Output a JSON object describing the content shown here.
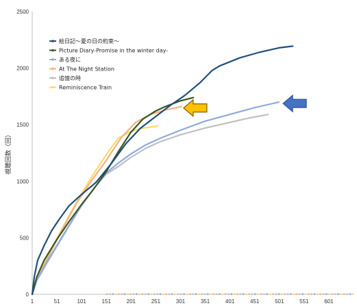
{
  "chart_data": {
    "type": "line",
    "title": "",
    "xlabel": "",
    "ylabel": "視聴回数（回）",
    "ylim": [
      0,
      2500
    ],
    "xlim": [
      1,
      651
    ],
    "x_ticks": [
      "1",
      "51",
      "101",
      "151",
      "201",
      "251",
      "301",
      "351",
      "401",
      "451",
      "501",
      "551",
      "601"
    ],
    "y_ticks": [
      "0",
      "500",
      "1000",
      "1500",
      "2000",
      "2500"
    ],
    "grid": false,
    "legend_position": "top-left",
    "series": [
      {
        "name": "絵日記～夏の日の約束～",
        "color": "#1F4E79",
        "points": [
          [
            1,
            0
          ],
          [
            5,
            150
          ],
          [
            12,
            300
          ],
          [
            25,
            430
          ],
          [
            40,
            560
          ],
          [
            55,
            660
          ],
          [
            75,
            780
          ],
          [
            100,
            880
          ],
          [
            130,
            990
          ],
          [
            160,
            1150
          ],
          [
            190,
            1330
          ],
          [
            220,
            1470
          ],
          [
            250,
            1570
          ],
          [
            280,
            1670
          ],
          [
            310,
            1760
          ],
          [
            340,
            1870
          ],
          [
            365,
            1980
          ],
          [
            380,
            2020
          ],
          [
            420,
            2090
          ],
          [
            460,
            2140
          ],
          [
            500,
            2180
          ],
          [
            528,
            2195
          ]
        ]
      },
      {
        "name": "Picture Diary-Promise in the winter day-",
        "color": "#375623",
        "points": [
          [
            1,
            0
          ],
          [
            10,
            150
          ],
          [
            25,
            300
          ],
          [
            50,
            480
          ],
          [
            75,
            640
          ],
          [
            100,
            790
          ],
          [
            125,
            930
          ],
          [
            150,
            1080
          ],
          [
            175,
            1260
          ],
          [
            200,
            1430
          ],
          [
            225,
            1550
          ],
          [
            250,
            1620
          ],
          [
            270,
            1660
          ],
          [
            300,
            1710
          ],
          [
            327,
            1740
          ]
        ]
      },
      {
        "name": "ある夜に",
        "color": "#8FAADC",
        "points": [
          [
            1,
            0
          ],
          [
            10,
            120
          ],
          [
            30,
            280
          ],
          [
            60,
            500
          ],
          [
            100,
            780
          ],
          [
            130,
            960
          ],
          [
            150,
            1070
          ],
          [
            175,
            1160
          ],
          [
            200,
            1240
          ],
          [
            230,
            1320
          ],
          [
            260,
            1380
          ],
          [
            300,
            1450
          ],
          [
            350,
            1530
          ],
          [
            400,
            1590
          ],
          [
            450,
            1650
          ],
          [
            500,
            1700
          ]
        ]
      },
      {
        "name": "At The Night Station",
        "color": "#F4B183",
        "points": [
          [
            1,
            0
          ],
          [
            10,
            130
          ],
          [
            30,
            300
          ],
          [
            60,
            560
          ],
          [
            90,
            800
          ],
          [
            120,
            1000
          ],
          [
            150,
            1180
          ],
          [
            180,
            1380
          ],
          [
            210,
            1520
          ],
          [
            240,
            1590
          ],
          [
            270,
            1630
          ],
          [
            303,
            1660
          ]
        ]
      },
      {
        "name": "追憶の時",
        "color": "#BFBFBF",
        "points": [
          [
            1,
            0
          ],
          [
            10,
            120
          ],
          [
            30,
            270
          ],
          [
            60,
            490
          ],
          [
            100,
            780
          ],
          [
            130,
            960
          ],
          [
            150,
            1060
          ],
          [
            175,
            1130
          ],
          [
            200,
            1210
          ],
          [
            230,
            1290
          ],
          [
            260,
            1350
          ],
          [
            300,
            1410
          ],
          [
            350,
            1470
          ],
          [
            400,
            1520
          ],
          [
            440,
            1560
          ],
          [
            478,
            1590
          ]
        ]
      },
      {
        "name": "Reminiscence Train",
        "color": "#FFD966",
        "points": [
          [
            1,
            0
          ],
          [
            10,
            140
          ],
          [
            30,
            310
          ],
          [
            60,
            570
          ],
          [
            90,
            810
          ],
          [
            120,
            1030
          ],
          [
            150,
            1230
          ],
          [
            175,
            1380
          ],
          [
            200,
            1440
          ],
          [
            225,
            1470
          ],
          [
            255,
            1490
          ]
        ]
      }
    ],
    "annotations": [
      {
        "type": "arrow",
        "color": "#FFC000",
        "points_to": "At The Night Station"
      },
      {
        "type": "arrow",
        "color": "#4472C4",
        "points_to": "ある夜に"
      }
    ]
  }
}
